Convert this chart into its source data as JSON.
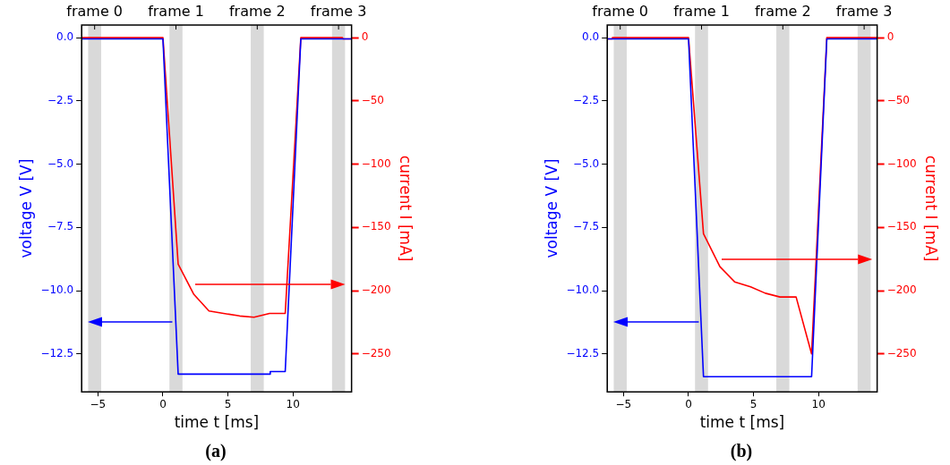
{
  "chart_data": [
    {
      "type": "line",
      "title": "(a)",
      "xlabel": "time t [ms]",
      "ylabel": "voltage V [V]",
      "y2label": "current I [mA]",
      "xlim": [
        -6.25,
        14.5
      ],
      "xticks": [
        {
          "value": -5,
          "label": "−5"
        },
        0,
        5,
        10
      ],
      "ylim": [
        -14,
        0.5
      ],
      "yticks": [
        {
          "value": -12.5,
          "label": "−12.5"
        },
        {
          "value": -10,
          "label": "−10.0"
        },
        {
          "value": -7.5,
          "label": "−7.5"
        },
        {
          "value": -5,
          "label": "−5.0"
        },
        {
          "value": -2.5,
          "label": "−2.5"
        },
        {
          "value": 0,
          "label": "0.0"
        }
      ],
      "y2lim": [
        -280,
        10
      ],
      "y2ticks": [
        {
          "value": -250,
          "label": "−250"
        },
        {
          "value": -200,
          "label": "−200"
        },
        {
          "value": -150,
          "label": "−150"
        },
        {
          "value": -100,
          "label": "−100"
        },
        {
          "value": -50,
          "label": "−50"
        },
        0
      ],
      "bands": [
        {
          "axis": "x",
          "from": -5.75,
          "to": -4.75,
          "color": "#d9d9d9",
          "label": "frame 0"
        },
        {
          "axis": "x",
          "from": 0.5,
          "to": 1.5,
          "color": "#d9d9d9",
          "label": "frame 1"
        },
        {
          "axis": "x",
          "from": 6.75,
          "to": 7.75,
          "color": "#d9d9d9",
          "label": "frame 2"
        },
        {
          "axis": "x",
          "from": 13,
          "to": 14,
          "color": "#d9d9d9",
          "label": "frame 3"
        }
      ],
      "grid": false,
      "line_style": "solid",
      "series": [
        {
          "color": "#0000ff",
          "x": [
            -6.25,
            0,
            1.17,
            8.2,
            8.25,
            9.4,
            10.6,
            14.5
          ],
          "values": [
            -0.05,
            -0.05,
            -13.3,
            -13.3,
            -13.2,
            -13.2,
            -0.05,
            -0.05
          ]
        },
        {
          "color": "#ff0000",
          "axis": "y2",
          "x": [
            -6.25,
            0,
            1.17,
            2.38,
            3.54,
            4.66,
            5.9,
            7.0,
            8.2,
            9.4,
            10.6,
            13.8,
            13.85,
            14.5
          ],
          "values": [
            0,
            0,
            -179,
            -203,
            -216,
            -218,
            -220,
            -221,
            -218,
            -218,
            0,
            0,
            -1,
            -1
          ]
        }
      ]
    },
    {
      "type": "line",
      "title": "(b)",
      "xlabel": "time t [ms]",
      "ylabel": "voltage V [V]",
      "y2label": "current I [mA]",
      "xlim": [
        -6.25,
        14.5
      ],
      "xticks": [
        {
          "value": -5,
          "label": "−5"
        },
        0,
        5,
        10
      ],
      "ylim": [
        -14,
        0.5
      ],
      "yticks": [
        {
          "value": -12.5,
          "label": "−12.5"
        },
        {
          "value": -10,
          "label": "−10.0"
        },
        {
          "value": -7.5,
          "label": "−7.5"
        },
        {
          "value": -5,
          "label": "−5.0"
        },
        {
          "value": -2.5,
          "label": "−2.5"
        },
        {
          "value": 0,
          "label": "0.0"
        }
      ],
      "y2lim": [
        -280,
        10
      ],
      "y2ticks": [
        {
          "value": -250,
          "label": "−250"
        },
        {
          "value": -200,
          "label": "−200"
        },
        {
          "value": -150,
          "label": "−150"
        },
        {
          "value": -100,
          "label": "−100"
        },
        {
          "value": -50,
          "label": "−50"
        },
        0
      ],
      "bands": [
        {
          "axis": "x",
          "from": -5.75,
          "to": -4.75,
          "color": "#d9d9d9",
          "label": "frame 0"
        },
        {
          "axis": "x",
          "from": 0.5,
          "to": 1.5,
          "color": "#d9d9d9",
          "label": "frame 1"
        },
        {
          "axis": "x",
          "from": 6.75,
          "to": 7.75,
          "color": "#d9d9d9",
          "label": "frame 2"
        },
        {
          "axis": "x",
          "from": 13,
          "to": 14,
          "color": "#d9d9d9",
          "label": "frame 3"
        }
      ],
      "grid": false,
      "line_style": "solid",
      "series": [
        {
          "color": "#0000ff",
          "x": [
            -6.25,
            0,
            1.15,
            9.46,
            10.63,
            14.5
          ],
          "values": [
            -0.05,
            -0.05,
            -13.4,
            -13.4,
            -0.05,
            -0.05
          ]
        },
        {
          "color": "#ff0000",
          "axis": "y2",
          "x": [
            -6.25,
            -5.9,
            -5.85,
            0,
            1.15,
            2.41,
            3.54,
            4.77,
            5.9,
            7.03,
            8.27,
            9.46,
            10.63,
            14.5
          ],
          "values": [
            -1,
            -1,
            0,
            0,
            -155,
            -181,
            -193,
            -197,
            -202,
            -205,
            -205,
            -250,
            0,
            0
          ]
        }
      ]
    }
  ]
}
